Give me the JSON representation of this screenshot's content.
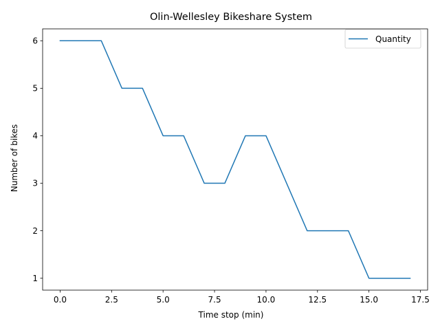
{
  "chart_data": {
    "type": "line",
    "title": "Olin-Wellesley Bikeshare System",
    "xlabel": "Time stop (min)",
    "ylabel": "Number of bikes",
    "xlim": [
      -0.85,
      17.85
    ],
    "ylim": [
      0.75,
      6.25
    ],
    "xticks": [
      0.0,
      2.5,
      5.0,
      7.5,
      10.0,
      12.5,
      15.0,
      17.5
    ],
    "xtick_labels": [
      "0.0",
      "2.5",
      "5.0",
      "7.5",
      "10.0",
      "12.5",
      "15.0",
      "17.5"
    ],
    "yticks": [
      1,
      2,
      3,
      4,
      5,
      6
    ],
    "ytick_labels": [
      "1",
      "2",
      "3",
      "4",
      "5",
      "6"
    ],
    "grid": false,
    "legend_position": "top-right",
    "series": [
      {
        "name": "Quantity",
        "color": "#1f77b4",
        "x": [
          0,
          1,
          2,
          3,
          4,
          5,
          6,
          7,
          8,
          9,
          10,
          11,
          12,
          13,
          14,
          15,
          16,
          17
        ],
        "y": [
          6,
          6,
          6,
          5,
          5,
          4,
          4,
          3,
          3,
          4,
          4,
          3,
          2,
          2,
          2,
          1,
          1,
          1
        ]
      }
    ]
  }
}
